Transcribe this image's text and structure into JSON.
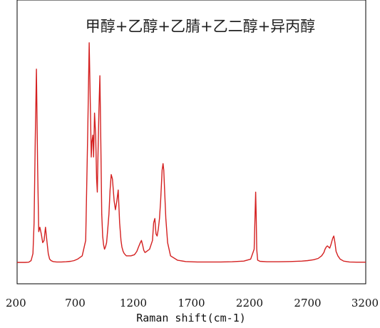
{
  "chart_data": {
    "type": "line",
    "title": "甲醇+乙醇+乙腈+乙二醇+异丙醇",
    "xlabel": "Raman shift(cm-1)",
    "ylabel": "",
    "xlim": [
      200,
      3200
    ],
    "x_ticks": [
      "200",
      "700",
      "1200",
      "1700",
      "2200",
      "2700",
      "3200"
    ],
    "y_ticks_visible": false,
    "grid": false,
    "legend": "none",
    "colors": {
      "line": "#d42020",
      "frame": "#000000"
    },
    "series": [
      {
        "x": [
          200,
          270,
          300,
          320,
          336,
          346,
          356,
          366,
          376,
          386,
          396,
          408,
          420,
          432,
          444,
          456,
          468,
          480,
          492,
          510,
          540,
          580,
          620,
          660,
          690,
          720,
          760,
          790,
          808,
          820,
          830,
          838,
          844,
          852,
          858,
          866,
          876,
          884,
          890,
          896,
          904,
          912,
          920,
          928,
          936,
          944,
          952,
          960,
          970,
          980,
          990,
          1000,
          1010,
          1020,
          1035,
          1046,
          1058,
          1070,
          1082,
          1094,
          1102,
          1112,
          1122,
          1140,
          1180,
          1210,
          1230,
          1245,
          1260,
          1270,
          1280,
          1290,
          1300,
          1315,
          1340,
          1365,
          1375,
          1385,
          1395,
          1405,
          1415,
          1425,
          1435,
          1448,
          1456,
          1462,
          1470,
          1480,
          1495,
          1520,
          1580,
          1650,
          1750,
          1850,
          1950,
          2050,
          2150,
          2210,
          2240,
          2248,
          2253,
          2257,
          2262,
          2270,
          2290,
          2350,
          2450,
          2550,
          2650,
          2700,
          2750,
          2790,
          2820,
          2840,
          2850,
          2860,
          2870,
          2880,
          2890,
          2900,
          2908,
          2916,
          2925,
          2935,
          2945,
          2960,
          2980,
          3010,
          3060,
          3120,
          3200
        ],
        "y": [
          0,
          0,
          0.1,
          0.8,
          4,
          18,
          55,
          88,
          45,
          14,
          16,
          13,
          9,
          10,
          16,
          10,
          4,
          1.5,
          0.8,
          0.4,
          0.2,
          0.2,
          0.3,
          0.5,
          0.8,
          1.5,
          3,
          10,
          60,
          100,
          72,
          48,
          55,
          58,
          48,
          68,
          58,
          38,
          32,
          48,
          70,
          85,
          55,
          22,
          12,
          8,
          6,
          7,
          9,
          15,
          22,
          33,
          40,
          38,
          28,
          24,
          28,
          33,
          18,
          10,
          7,
          5,
          4,
          3,
          3,
          3.5,
          5,
          7,
          9,
          10,
          8,
          5.5,
          4.5,
          5,
          6,
          10,
          18,
          20,
          13,
          12,
          15,
          20,
          28,
          42,
          45,
          42,
          32,
          20,
          9,
          3,
          1,
          0.4,
          0.2,
          0.2,
          0.2,
          0.3,
          0.6,
          1.5,
          6,
          22,
          32,
          22,
          6,
          1,
          0.5,
          0.3,
          0.3,
          0.4,
          0.6,
          0.8,
          1.2,
          1.8,
          3,
          4.5,
          6,
          7,
          7.5,
          7,
          6.5,
          8,
          9.5,
          11,
          12,
          9,
          5,
          3,
          1.5,
          0.6,
          0.2,
          0.1,
          0.1
        ]
      }
    ]
  }
}
